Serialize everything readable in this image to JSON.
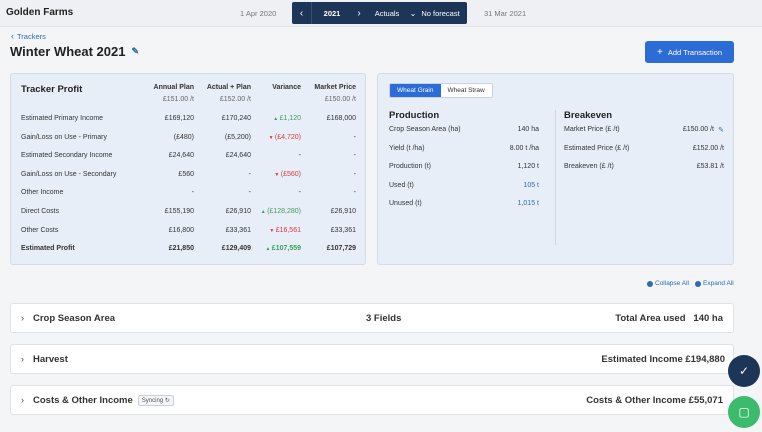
{
  "app": {
    "brand": "Golden Farms"
  },
  "season": {
    "start_date": "1 Apr 2020",
    "year": "2021",
    "view": "Actuals",
    "forecast": "No forecast",
    "end_date": "31 Mar 2021"
  },
  "breadcrumb": "Trackers",
  "page": {
    "title": "Winter Wheat 2021",
    "add_button": "Add Transaction"
  },
  "profit": {
    "title": "Tracker Profit",
    "columns": [
      {
        "label": "Annual Plan",
        "sub": "£151.00 /t"
      },
      {
        "label": "Actual + Plan",
        "sub": "£152.00 /t"
      },
      {
        "label": "Variance",
        "sub": ""
      },
      {
        "label": "Market Price",
        "sub": "£150.00 /t"
      }
    ],
    "rows": [
      {
        "label": "Estimated Primary Income",
        "plan": "£169,120",
        "actual": "£170,240",
        "variance": "£1,120",
        "dir": "up",
        "market": "£168,000"
      },
      {
        "label": "Gain/Loss on Use - Primary",
        "plan": "(£480)",
        "actual": "(£5,200)",
        "variance": "(£4,720)",
        "dir": "down",
        "market": "-"
      },
      {
        "label": "Estimated Secondary Income",
        "plan": "£24,640",
        "actual": "£24,640",
        "variance": "-",
        "dir": "",
        "market": "-"
      },
      {
        "label": "Gain/Loss on Use - Secondary",
        "plan": "£560",
        "actual": "-",
        "variance": "(£560)",
        "dir": "down",
        "market": "-"
      },
      {
        "label": "Other Income",
        "plan": "-",
        "actual": "-",
        "variance": "-",
        "dir": "",
        "market": "-"
      },
      {
        "label": "Direct Costs",
        "plan": "£155,190",
        "actual": "£26,910",
        "variance": "(£128,280)",
        "dir": "up",
        "market": "£26,910"
      },
      {
        "label": "Other Costs",
        "plan": "£16,800",
        "actual": "£33,361",
        "variance": "£16,561",
        "dir": "down",
        "market": "£33,361"
      },
      {
        "label": "Estimated Profit",
        "plan": "£21,850",
        "actual": "£129,409",
        "variance": "£107,559",
        "dir": "up",
        "market": "£107,729",
        "bold": true
      }
    ]
  },
  "production_tabs": [
    "Wheat Grain",
    "Wheat Straw"
  ],
  "production": {
    "title": "Production",
    "rows": [
      {
        "label": "Crop Season Area (ha)",
        "value": "140 ha",
        "link": false
      },
      {
        "label": "Yield (t /ha)",
        "value": "8.00 t /ha",
        "link": false
      },
      {
        "label": "Production (t)",
        "value": "1,120 t",
        "link": false
      },
      {
        "label": "Used (t)",
        "value": "105 t",
        "link": true
      },
      {
        "label": "Unused (t)",
        "value": "1,015 t",
        "link": true
      }
    ]
  },
  "breakeven": {
    "title": "Breakeven",
    "rows": [
      {
        "label": "Market Price (£ /t)",
        "value": "£150.00 /t"
      },
      {
        "label": "Estimated Price (£ /t)",
        "value": "£152.00 /t"
      },
      {
        "label": "Breakeven (£ /t)",
        "value": "£53.81 /t"
      }
    ]
  },
  "controls": {
    "collapse": "Collapse All",
    "expand": "Expand All"
  },
  "sections": [
    {
      "name": "Crop Season Area",
      "mid": "3 Fields",
      "right": "Total Area used   140 ha",
      "badge": ""
    },
    {
      "name": "Harvest",
      "mid": "",
      "right": "Estimated Income £194,880",
      "badge": ""
    },
    {
      "name": "Costs & Other Income",
      "mid": "",
      "right": "Costs & Other Income £55,071",
      "badge": "Syncing"
    }
  ],
  "icons": {
    "accent": "#2c6cd6",
    "navy": "#1d3557",
    "green": "#3dbb6d"
  }
}
